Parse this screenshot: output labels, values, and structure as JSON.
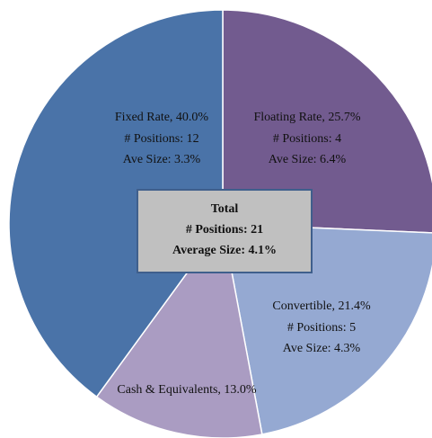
{
  "chart_data": {
    "type": "pie",
    "slice_labels": [
      "Floating Rate, 25.7%",
      "Convertible, 21.4%",
      "Cash & Equivalents, 13.0%",
      "Fixed Rate, 40.0%"
    ],
    "values": [
      25.7,
      21.4,
      13.0,
      40.0
    ],
    "colors": [
      "#725b8f",
      "#95a9d2",
      "#aa9cc2",
      "#4a73a8"
    ],
    "positions_labels": [
      "# Positions: 4",
      "# Positions: 5",
      null,
      "# Positions: 12"
    ],
    "size_labels": [
      "Ave Size: 6.4%",
      "Ave Size: 4.3%",
      null,
      "Ave Size: 3.3%"
    ],
    "total": {
      "title": "Total",
      "positions": "# Positions: 21",
      "average_size": "Average Size: 4.1%"
    }
  }
}
